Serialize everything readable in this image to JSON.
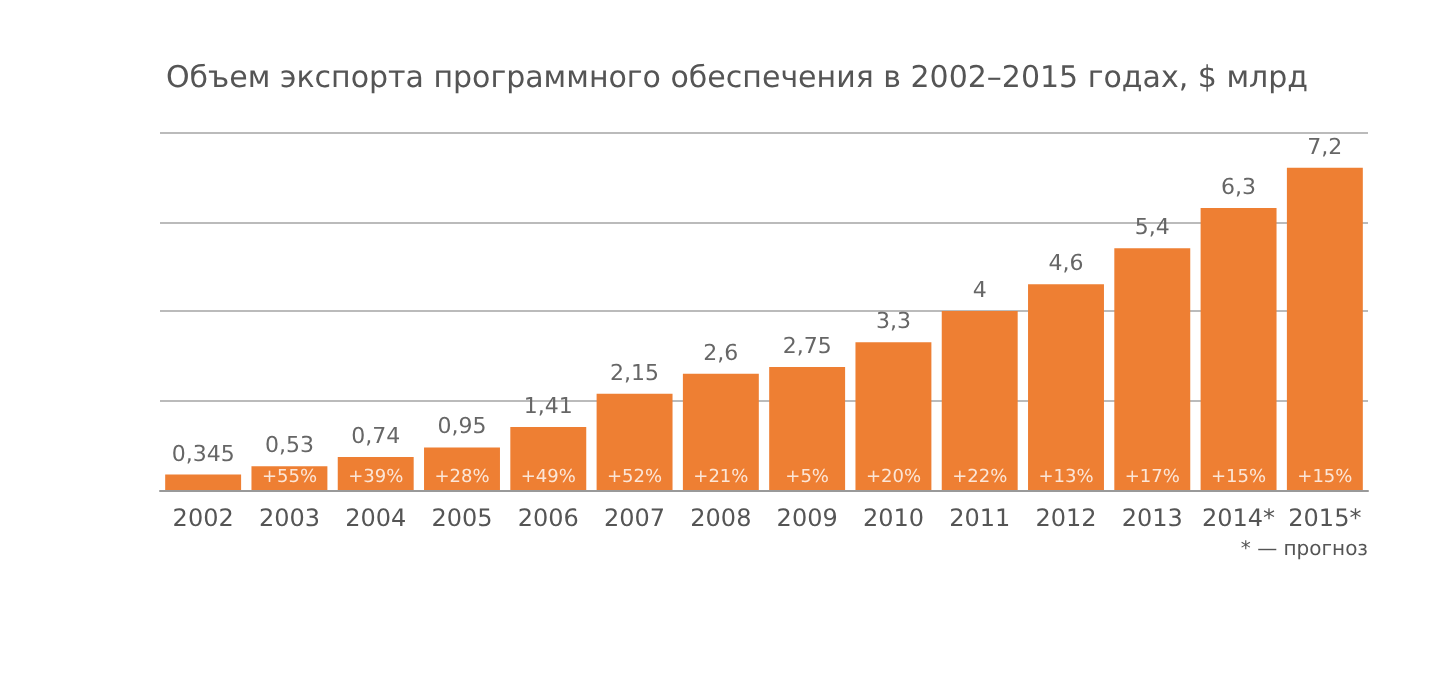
{
  "chart_data": {
    "type": "bar",
    "title": "Объем экспорта программного обеспечения в 2002–2015 годах, $ млрд",
    "categories": [
      "2002",
      "2003",
      "2004",
      "2005",
      "2006",
      "2007",
      "2008",
      "2009",
      "2010",
      "2011",
      "2012",
      "2013",
      "2014*",
      "2015*"
    ],
    "values": [
      0.345,
      0.53,
      0.74,
      0.95,
      1.41,
      2.15,
      2.6,
      2.75,
      3.3,
      4,
      4.6,
      5.4,
      6.3,
      7.2
    ],
    "value_labels": [
      "0,345",
      "0,53",
      "0,74",
      "0,95",
      "1,41",
      "2,15",
      "2,6",
      "2,75",
      "3,3",
      "4",
      "4,6",
      "5,4",
      "6,3",
      "7,2"
    ],
    "color": "#ee7f33",
    "ylim": [
      0,
      8
    ],
    "yticks": [
      {
        "value": 0,
        "label": null
      },
      {
        "value": 2,
        "label": null
      },
      {
        "value": 4,
        "label": null
      },
      {
        "value": 6,
        "label": null
      },
      {
        "value": 8,
        "label": null
      }
    ],
    "tick_labels": "x",
    "grid": "y",
    "annotations": [
      {
        "text": "+55%",
        "x": "2003",
        "y": 0
      },
      {
        "text": "+39%",
        "x": "2004",
        "y": 0
      },
      {
        "text": "+28%",
        "x": "2005",
        "y": 0
      },
      {
        "text": "+49%",
        "x": "2006",
        "y": 0
      },
      {
        "text": "+52%",
        "x": "2007",
        "y": 0
      },
      {
        "text": "+21%",
        "x": "2008",
        "y": 0
      },
      {
        "text": "+5%",
        "x": "2009",
        "y": 0
      },
      {
        "text": "+20%",
        "x": "2010",
        "y": 0
      },
      {
        "text": "+22%",
        "x": "2011",
        "y": 0
      },
      {
        "text": "+13%",
        "x": "2012",
        "y": 0
      },
      {
        "text": "+17%",
        "x": "2013",
        "y": 0
      },
      {
        "text": "+15%",
        "x": "2014*",
        "y": 0
      },
      {
        "text": "+15%",
        "x": "2015*",
        "y": 0
      },
      "* — прогноз"
    ]
  }
}
